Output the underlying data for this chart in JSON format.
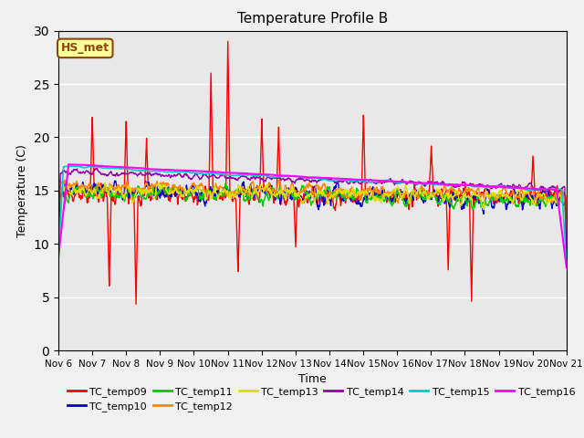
{
  "title": "Temperature Profile B",
  "xlabel": "Time",
  "ylabel": "Temperature (C)",
  "ylim": [
    0,
    30
  ],
  "x_tick_labels": [
    "Nov 6",
    "Nov 7",
    "Nov 8",
    "Nov 9",
    "Nov 10",
    "Nov 11",
    "Nov 12",
    "Nov 13",
    "Nov 14",
    "Nov 15",
    "Nov 16",
    "Nov 17",
    "Nov 18",
    "Nov 19",
    "Nov 20",
    "Nov 21"
  ],
  "annotation_label": "HS_met",
  "annotation_color": "#8B4513",
  "annotation_bg": "#FFFF99",
  "series_order": [
    "TC_temp09",
    "TC_temp10",
    "TC_temp11",
    "TC_temp12",
    "TC_temp13",
    "TC_temp14",
    "TC_temp15",
    "TC_temp16"
  ],
  "series": {
    "TC_temp09": {
      "color": "#FF0000",
      "lw": 1.0
    },
    "TC_temp10": {
      "color": "#0000CC",
      "lw": 1.0
    },
    "TC_temp11": {
      "color": "#00CC00",
      "lw": 1.0
    },
    "TC_temp12": {
      "color": "#FF8800",
      "lw": 1.0
    },
    "TC_temp13": {
      "color": "#DDDD00",
      "lw": 1.0
    },
    "TC_temp14": {
      "color": "#9900AA",
      "lw": 1.0
    },
    "TC_temp15": {
      "color": "#00CCCC",
      "lw": 1.2
    },
    "TC_temp16": {
      "color": "#FF00FF",
      "lw": 1.5
    }
  },
  "plot_bg": "#E8E8E8",
  "fig_bg": "#F0F0F0",
  "grid_color": "#FFFFFF",
  "legend_ncol1": 6,
  "legend_ncol2": 2
}
